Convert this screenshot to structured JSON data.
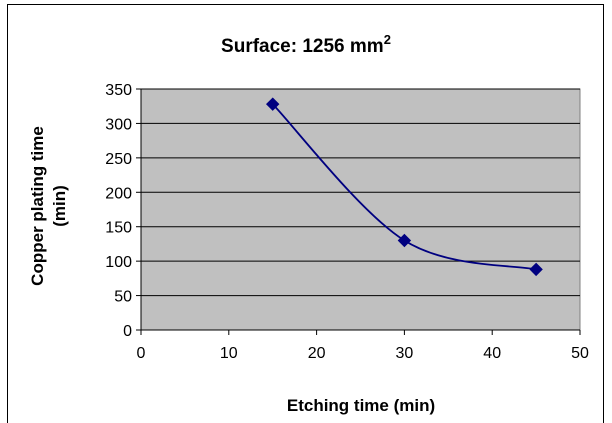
{
  "chart_data": {
    "type": "scatter",
    "title": "Surface: 1256 mm",
    "title_superscript": "2",
    "xlabel": "Etching time (min)",
    "ylabel_line1": "Copper plating time",
    "ylabel_line2": "(min)",
    "xlim": [
      0,
      50
    ],
    "ylim": [
      0,
      350
    ],
    "xticks": [
      0,
      10,
      20,
      30,
      40,
      50
    ],
    "yticks": [
      0,
      50,
      100,
      150,
      200,
      250,
      300,
      350
    ],
    "grid": "horizontal",
    "plot_background": "#c0c0c0",
    "series_color": "#000080",
    "marker": "diamond",
    "line": "smooth",
    "series": [
      {
        "x": [
          15,
          30,
          45
        ],
        "y": [
          328,
          130,
          88
        ]
      }
    ]
  }
}
